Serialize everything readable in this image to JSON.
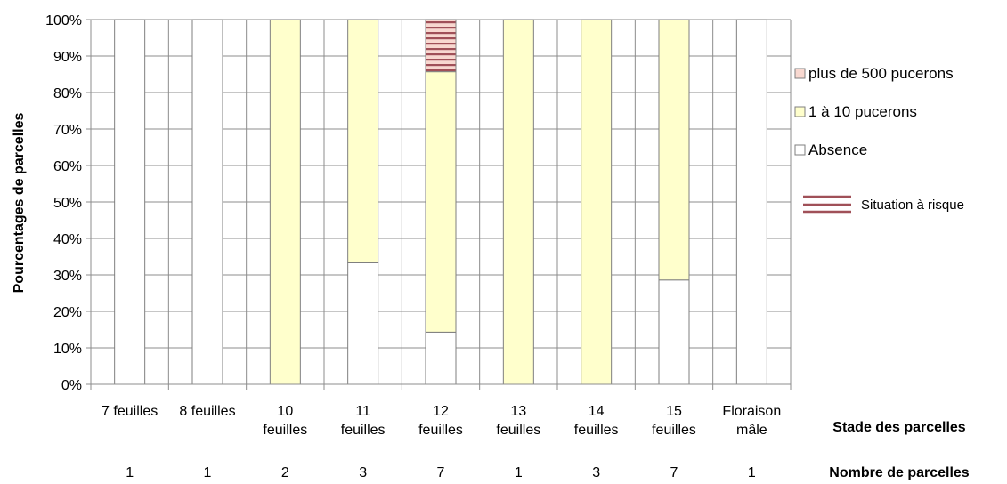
{
  "chart_data": {
    "type": "bar",
    "stacked": true,
    "ylabel": "Pourcentages de parcelles",
    "ylim": [
      0,
      100
    ],
    "yticks": [
      "0%",
      "10%",
      "20%",
      "30%",
      "40%",
      "50%",
      "60%",
      "70%",
      "80%",
      "90%",
      "100%"
    ],
    "categories": [
      [
        "7 feuilles"
      ],
      [
        "8 feuilles"
      ],
      [
        "10",
        "feuilles"
      ],
      [
        "11",
        "feuilles"
      ],
      [
        "12",
        "feuilles"
      ],
      [
        "13",
        "feuilles"
      ],
      [
        "14",
        "feuilles"
      ],
      [
        "15",
        "feuilles"
      ],
      [
        "Floraison",
        "mâle"
      ]
    ],
    "xlabel": "Stade des parcelles",
    "counts_label": "Nombre de parcelles",
    "counts": [
      "1",
      "1",
      "2",
      "3",
      "7",
      "1",
      "3",
      "7",
      "1"
    ],
    "series": [
      {
        "name": "Absence",
        "color": "#ffffff",
        "values": [
          100,
          100,
          0,
          33.3,
          14.3,
          0,
          0,
          28.6,
          100
        ]
      },
      {
        "name": "1 à 10 pucerons",
        "color": "#ffffcc",
        "values": [
          0,
          0,
          100,
          66.7,
          71.4,
          100,
          100,
          71.4,
          0
        ]
      },
      {
        "name": "plus de 500 pucerons",
        "color": "#f8d8d0",
        "hatch": "#a05058",
        "values": [
          0,
          0,
          0,
          0,
          14.3,
          0,
          0,
          0,
          0
        ]
      }
    ],
    "legend_order": [
      "plus de 500 pucerons",
      "1 à 10 pucerons",
      "Absence"
    ],
    "risk_label": "Situation à risque",
    "grid": true,
    "legend_position": "right"
  }
}
